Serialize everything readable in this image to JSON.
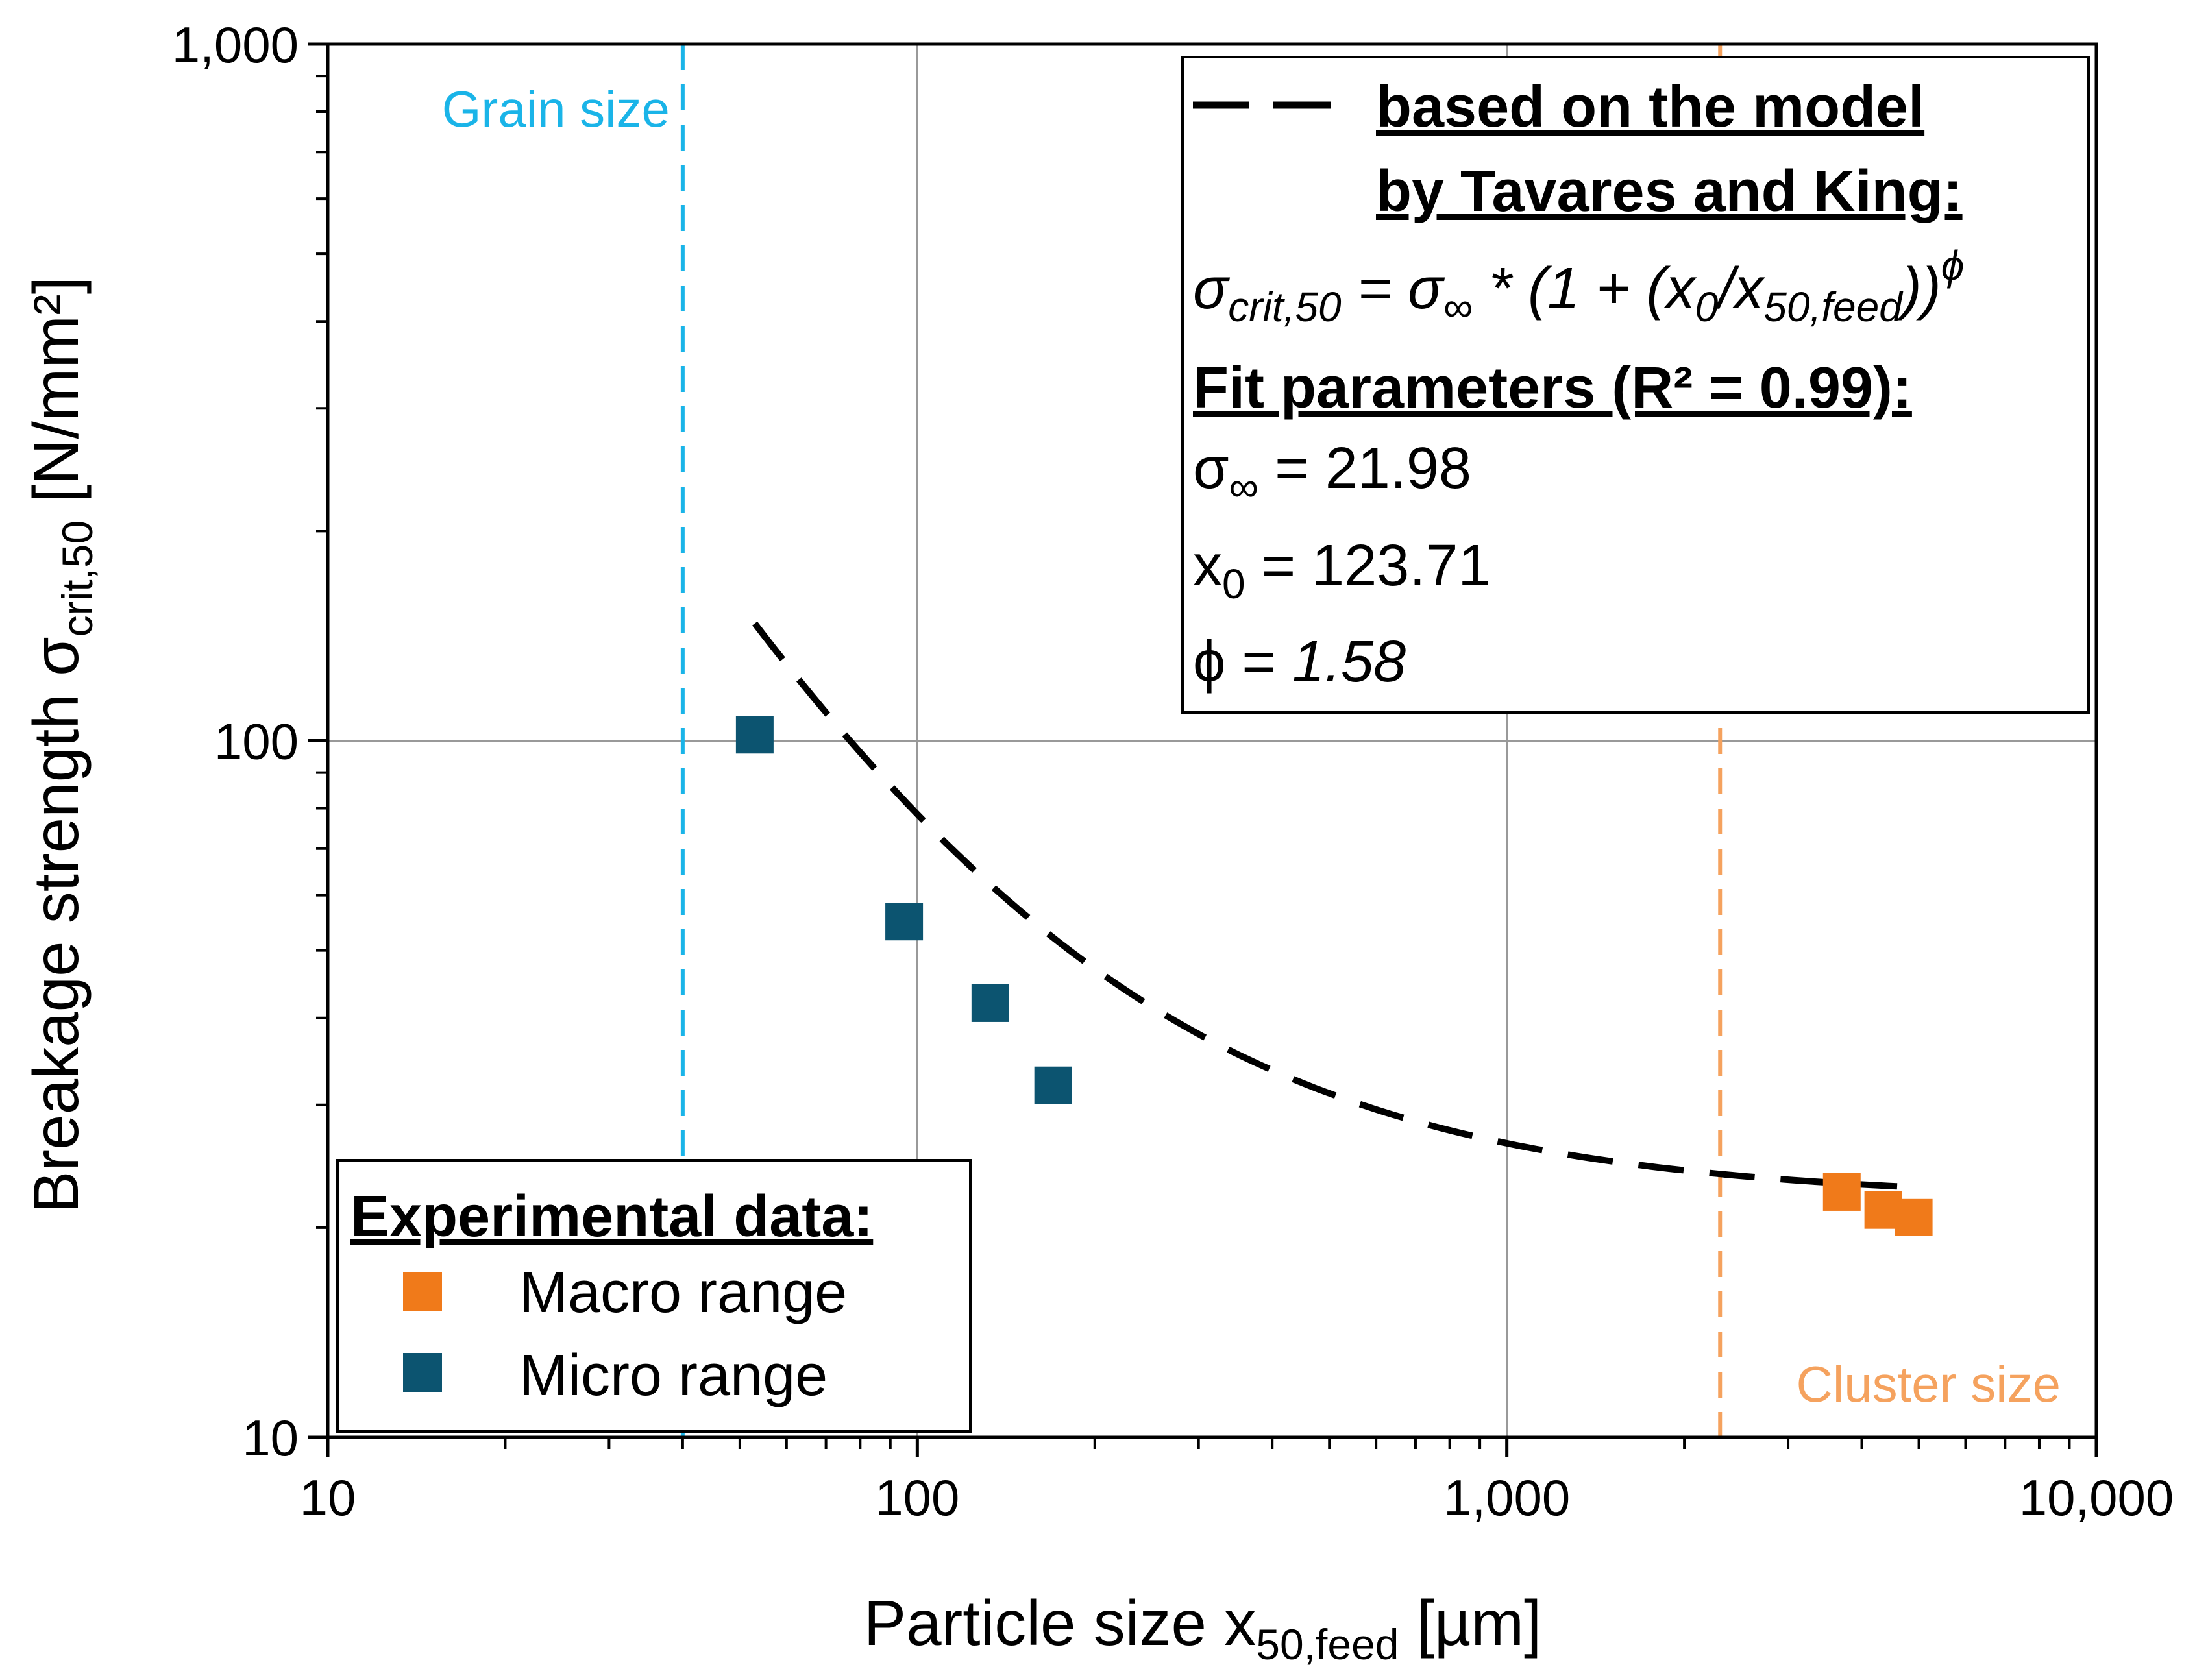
{
  "chart_data": {
    "type": "scatter",
    "x_scale": "log",
    "y_scale": "log",
    "xlim": [
      10,
      10000
    ],
    "ylim": [
      10,
      1000
    ],
    "grid": true,
    "xlabel": {
      "main": "Particle size x",
      "sub": "50,feed",
      "unit": " [µm]"
    },
    "ylabel": {
      "main": "Breakage strength σ",
      "sub": "crit,50",
      "unit": " [N/mm²]"
    },
    "x_ticks": [
      {
        "value": 10,
        "label": "10"
      },
      {
        "value": 100,
        "label": "100"
      },
      {
        "value": 1000,
        "label": "1,000"
      },
      {
        "value": 10000,
        "label": "10,000"
      }
    ],
    "y_ticks": [
      {
        "value": 10,
        "label": "10"
      },
      {
        "value": 100,
        "label": "100"
      },
      {
        "value": 1000,
        "label": "1,000"
      }
    ],
    "series": [
      {
        "name": "Macro range",
        "color": "#f07a1a",
        "marker": "square",
        "points": [
          {
            "x": 3700,
            "y": 22.5
          },
          {
            "x": 4350,
            "y": 21.2
          },
          {
            "x": 4900,
            "y": 20.7
          }
        ]
      },
      {
        "name": "Micro range",
        "color": "#0c5470",
        "marker": "square",
        "points": [
          {
            "x": 53,
            "y": 102
          },
          {
            "x": 95,
            "y": 55
          },
          {
            "x": 133,
            "y": 42
          },
          {
            "x": 170,
            "y": 32
          }
        ]
      }
    ],
    "model_curve": {
      "style": "dashed",
      "color": "#000000",
      "sigma_inf": 21.98,
      "x0": 123.71,
      "phi": 1.58,
      "x_range": [
        53,
        4600
      ]
    },
    "reference_lines": [
      {
        "label": "Grain size",
        "x": 40,
        "color": "#1ab4e8",
        "label_position": "top-left"
      },
      {
        "label": "Cluster size",
        "x": 2300,
        "color": "#f5a25e",
        "label_position": "bottom-right"
      }
    ],
    "legend": {
      "title": "Experimental data:",
      "position": "bottom-left"
    },
    "model_box": {
      "position": "top-right",
      "title_line1": "based on the model",
      "title_line2": "by Tavares and King:",
      "formula": {
        "sigma": "σ",
        "crit_sub": "crit,50",
        "eq": " = σ",
        "inf_sub": "∞",
        "mid": " * (1 + (x",
        "zero_sub": "0",
        "slash": "/x",
        "feed_sub": "50,feed",
        "close": "))",
        "phi_sup": "ϕ"
      },
      "fit_title": "Fit parameters (R² = 0.99):",
      "param_sigma": {
        "symbol": "σ",
        "sub": "∞",
        "eq": " = 21.98"
      },
      "param_x0": {
        "symbol": "x",
        "sub": "0",
        "eq": " = 123.71"
      },
      "param_phi": {
        "symbol": "ϕ",
        "eq": "  = ",
        "value": "1.58"
      }
    }
  }
}
